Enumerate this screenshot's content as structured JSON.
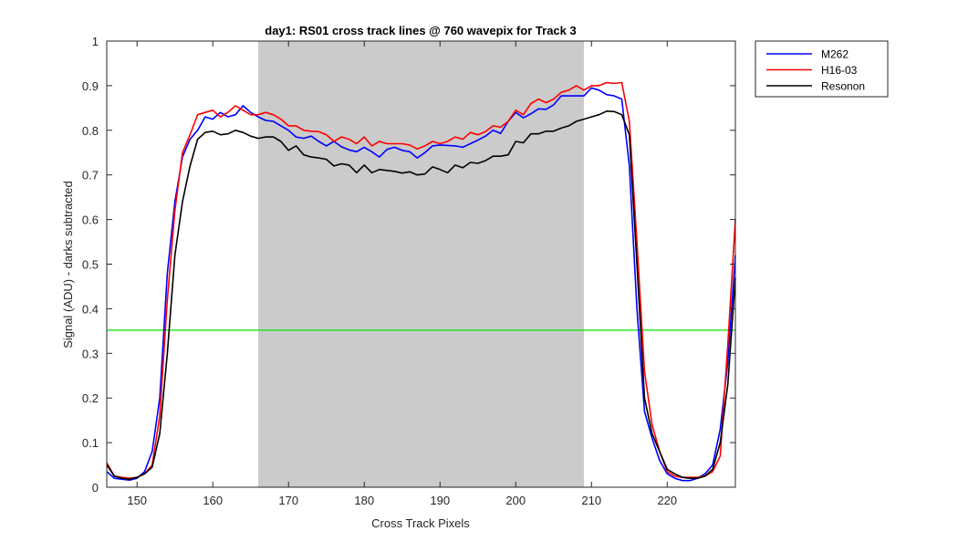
{
  "chart_data": {
    "type": "line",
    "title": "day1: RS01  cross track lines @ 760 wavepix for Track 3",
    "xlabel": "Cross Track Pixels",
    "ylabel": "Signal (ADU) - darks subtracted",
    "xlim": [
      146,
      229
    ],
    "ylim": [
      0,
      1
    ],
    "xticks": [
      150,
      160,
      170,
      180,
      190,
      200,
      210,
      220
    ],
    "yticks": [
      0,
      0.1,
      0.2,
      0.3,
      0.4,
      0.5,
      0.6,
      0.7,
      0.8,
      0.9,
      1
    ],
    "grid": false,
    "legend_position": "outside-top-right",
    "shaded_region": {
      "x0": 166,
      "x1": 209,
      "color": "#cbcbcb"
    },
    "hline": {
      "y": 0.352,
      "color": "#00e400"
    },
    "x": [
      146,
      147,
      148,
      149,
      150,
      151,
      152,
      153,
      154,
      155,
      156,
      157,
      158,
      159,
      160,
      161,
      162,
      163,
      164,
      165,
      166,
      167,
      168,
      169,
      170,
      171,
      172,
      173,
      174,
      175,
      176,
      177,
      178,
      179,
      180,
      181,
      182,
      183,
      184,
      185,
      186,
      187,
      188,
      189,
      190,
      191,
      192,
      193,
      194,
      195,
      196,
      197,
      198,
      199,
      200,
      201,
      202,
      203,
      204,
      205,
      206,
      207,
      208,
      209,
      210,
      211,
      212,
      213,
      214,
      215,
      216,
      217,
      218,
      219,
      220,
      221,
      222,
      223,
      224,
      225,
      226,
      227,
      228,
      229
    ],
    "series": [
      {
        "name": "M262",
        "color": "#0000ff",
        "values": [
          0.035,
          0.02,
          0.018,
          0.016,
          0.02,
          0.035,
          0.08,
          0.2,
          0.48,
          0.64,
          0.74,
          0.78,
          0.8,
          0.83,
          0.825,
          0.84,
          0.83,
          0.835,
          0.855,
          0.84,
          0.83,
          0.822,
          0.82,
          0.81,
          0.8,
          0.785,
          0.782,
          0.787,
          0.775,
          0.765,
          0.775,
          0.763,
          0.756,
          0.752,
          0.762,
          0.752,
          0.74,
          0.757,
          0.762,
          0.755,
          0.752,
          0.738,
          0.75,
          0.765,
          0.767,
          0.766,
          0.765,
          0.762,
          0.77,
          0.778,
          0.787,
          0.8,
          0.793,
          0.82,
          0.84,
          0.828,
          0.837,
          0.848,
          0.847,
          0.857,
          0.877,
          0.877,
          0.877,
          0.877,
          0.895,
          0.89,
          0.88,
          0.877,
          0.87,
          0.72,
          0.4,
          0.17,
          0.11,
          0.06,
          0.03,
          0.02,
          0.015,
          0.015,
          0.02,
          0.03,
          0.05,
          0.13,
          0.28,
          0.52
        ]
      },
      {
        "name": "H16-03",
        "color": "#ff0000",
        "values": [
          0.055,
          0.025,
          0.022,
          0.02,
          0.022,
          0.03,
          0.05,
          0.16,
          0.42,
          0.62,
          0.75,
          0.79,
          0.835,
          0.84,
          0.845,
          0.83,
          0.84,
          0.855,
          0.845,
          0.835,
          0.835,
          0.84,
          0.835,
          0.825,
          0.81,
          0.81,
          0.8,
          0.798,
          0.797,
          0.79,
          0.775,
          0.785,
          0.78,
          0.77,
          0.785,
          0.765,
          0.775,
          0.77,
          0.77,
          0.77,
          0.767,
          0.758,
          0.765,
          0.775,
          0.77,
          0.775,
          0.785,
          0.78,
          0.795,
          0.79,
          0.797,
          0.81,
          0.807,
          0.82,
          0.845,
          0.835,
          0.86,
          0.87,
          0.862,
          0.87,
          0.885,
          0.89,
          0.9,
          0.89,
          0.9,
          0.9,
          0.907,
          0.905,
          0.907,
          0.82,
          0.55,
          0.26,
          0.14,
          0.08,
          0.035,
          0.025,
          0.022,
          0.022,
          0.022,
          0.025,
          0.035,
          0.07,
          0.32,
          0.6
        ]
      },
      {
        "name": "Resonon",
        "color": "#000000",
        "values": [
          0.05,
          0.025,
          0.02,
          0.018,
          0.022,
          0.03,
          0.045,
          0.12,
          0.3,
          0.52,
          0.64,
          0.72,
          0.78,
          0.795,
          0.798,
          0.79,
          0.792,
          0.8,
          0.795,
          0.787,
          0.782,
          0.785,
          0.785,
          0.775,
          0.755,
          0.765,
          0.745,
          0.74,
          0.738,
          0.735,
          0.72,
          0.725,
          0.722,
          0.705,
          0.722,
          0.705,
          0.712,
          0.71,
          0.708,
          0.704,
          0.707,
          0.7,
          0.702,
          0.718,
          0.712,
          0.705,
          0.722,
          0.716,
          0.728,
          0.726,
          0.732,
          0.742,
          0.742,
          0.745,
          0.775,
          0.772,
          0.792,
          0.792,
          0.798,
          0.798,
          0.805,
          0.81,
          0.82,
          0.825,
          0.83,
          0.835,
          0.843,
          0.842,
          0.835,
          0.79,
          0.5,
          0.2,
          0.12,
          0.08,
          0.04,
          0.03,
          0.022,
          0.02,
          0.02,
          0.025,
          0.04,
          0.1,
          0.23,
          0.47
        ]
      }
    ]
  }
}
